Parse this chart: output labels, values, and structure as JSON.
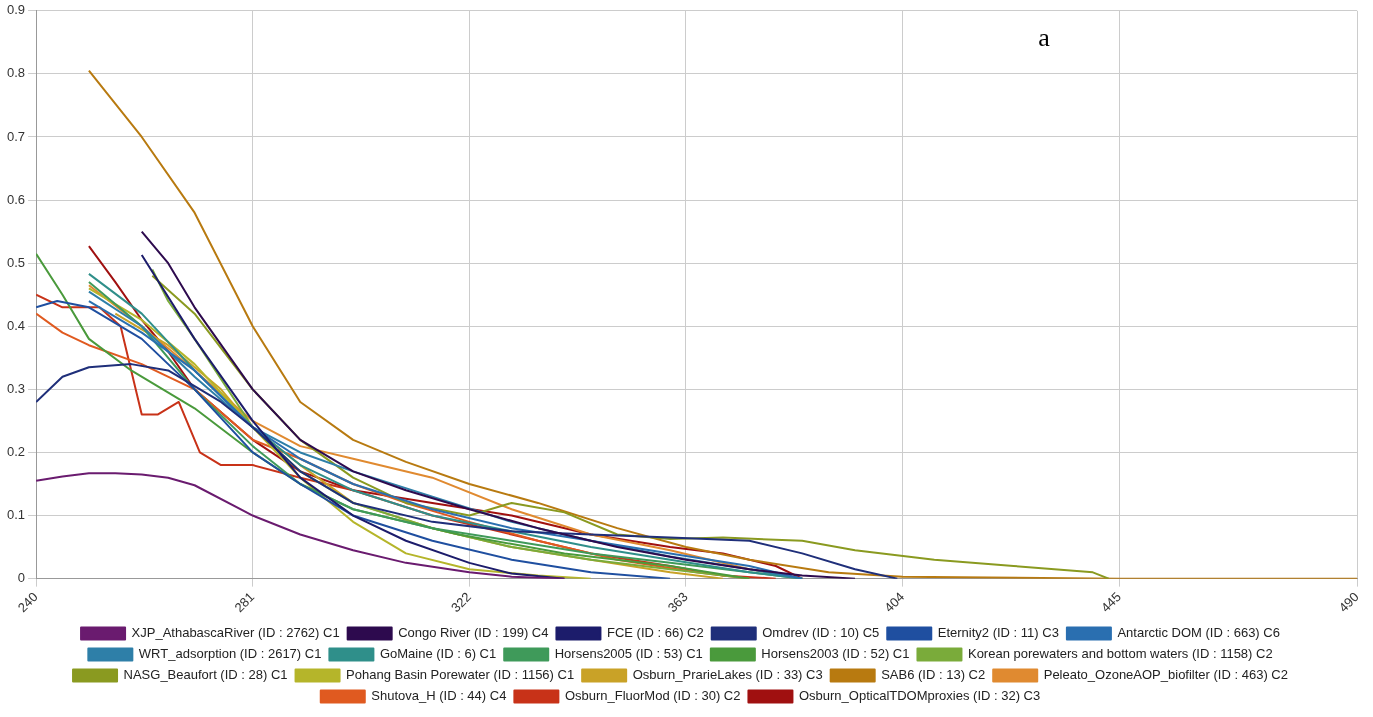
{
  "chart_data": {
    "type": "line",
    "annotations": [
      "a"
    ],
    "xlim": [
      240,
      490
    ],
    "xticks": [
      240,
      281,
      322,
      363,
      404,
      445,
      490
    ],
    "ylim": [
      0,
      0.9
    ],
    "yticks": [
      0,
      0.1,
      0.2,
      0.3,
      0.4,
      0.5,
      0.6,
      0.7,
      0.8,
      0.9
    ],
    "grid": true,
    "legend": "bottom",
    "marker": "none",
    "line_style": "solid",
    "series": [
      {
        "name": "XJP_AthabascaRiver (ID : 2762) C1",
        "color": "#6a1b6f",
        "x": [
          240,
          245,
          250,
          255,
          260,
          265,
          270,
          281,
          290,
          300,
          310,
          322,
          330,
          340
        ],
        "values": [
          0.155,
          0.162,
          0.167,
          0.167,
          0.165,
          0.16,
          0.148,
          0.1,
          0.07,
          0.045,
          0.025,
          0.01,
          0.003,
          0
        ]
      },
      {
        "name": "Congo River (ID : 199) C4",
        "color": "#2d0a4e",
        "x": [
          260,
          265,
          270,
          281,
          290,
          300,
          310,
          322,
          335,
          350,
          363,
          375,
          385,
          395
        ],
        "values": [
          0.55,
          0.5,
          0.43,
          0.3,
          0.22,
          0.17,
          0.14,
          0.11,
          0.08,
          0.05,
          0.03,
          0.015,
          0.005,
          0
        ]
      },
      {
        "name": "FCE (ID : 66) C2",
        "color": "#1c1c6b",
        "x": [
          260,
          270,
          281,
          290,
          300,
          310,
          322,
          330,
          340
        ],
        "values": [
          0.513,
          0.38,
          0.25,
          0.16,
          0.1,
          0.06,
          0.025,
          0.008,
          0
        ]
      },
      {
        "name": "Omdrev (ID : 10) C5",
        "color": "#1f2f7a",
        "x": [
          240,
          245,
          250,
          258,
          265,
          275,
          281,
          290,
          300,
          315,
          330,
          345,
          360,
          375,
          385,
          395,
          403
        ],
        "values": [
          0.28,
          0.32,
          0.335,
          0.34,
          0.33,
          0.28,
          0.24,
          0.17,
          0.12,
          0.09,
          0.075,
          0.07,
          0.065,
          0.06,
          0.04,
          0.015,
          0
        ]
      },
      {
        "name": "Eternity2 (ID : 11) C3",
        "color": "#1f4fa0",
        "x": [
          240,
          244,
          250,
          260,
          270,
          281,
          290,
          300,
          315,
          330,
          345,
          360
        ],
        "values": [
          0.43,
          0.44,
          0.43,
          0.38,
          0.3,
          0.2,
          0.15,
          0.1,
          0.06,
          0.03,
          0.01,
          0
        ]
      },
      {
        "name": "Antarctic DOM (ID : 663) C6",
        "color": "#2a6fb0",
        "x": [
          250,
          260,
          270,
          281,
          290,
          300,
          315,
          330,
          345,
          360,
          375,
          385
        ],
        "values": [
          0.44,
          0.39,
          0.33,
          0.24,
          0.19,
          0.15,
          0.11,
          0.08,
          0.06,
          0.04,
          0.02,
          0
        ]
      },
      {
        "name": "WRT_adsorption (ID : 2617) C1",
        "color": "#2e7fa8",
        "x": [
          250,
          260,
          270,
          281,
          290,
          300,
          315,
          330,
          345,
          360,
          375,
          385
        ],
        "values": [
          0.455,
          0.4,
          0.32,
          0.24,
          0.2,
          0.17,
          0.13,
          0.09,
          0.06,
          0.035,
          0.015,
          0
        ]
      },
      {
        "name": "GoMaine (ID : 6) C1",
        "color": "#2f8f8a",
        "x": [
          250,
          260,
          270,
          281,
          290,
          300,
          315,
          330,
          345,
          360,
          375,
          385
        ],
        "values": [
          0.483,
          0.42,
          0.33,
          0.24,
          0.18,
          0.14,
          0.1,
          0.075,
          0.05,
          0.03,
          0.01,
          0
        ]
      },
      {
        "name": "Horsens2005 (ID : 53) C1",
        "color": "#3f9a5a",
        "x": [
          250,
          260,
          270,
          281,
          290,
          300,
          315,
          330,
          345,
          360,
          375,
          385
        ],
        "values": [
          0.47,
          0.4,
          0.3,
          0.21,
          0.15,
          0.11,
          0.08,
          0.06,
          0.04,
          0.025,
          0.01,
          0
        ]
      },
      {
        "name": "Horsens2003 (ID : 52) C1",
        "color": "#4a9a3c",
        "x": [
          240,
          245,
          250,
          258,
          270,
          281,
          290,
          300,
          320,
          340,
          360,
          375
        ],
        "values": [
          0.515,
          0.45,
          0.38,
          0.33,
          0.27,
          0.2,
          0.15,
          0.11,
          0.07,
          0.04,
          0.02,
          0
        ]
      },
      {
        "name": "Korean porewaters and bottom waters (ID : 1158) C2",
        "color": "#7aab3a",
        "x": [
          262,
          265,
          270,
          281,
          290,
          300,
          315,
          330,
          345,
          360,
          375
        ],
        "values": [
          0.49,
          0.44,
          0.38,
          0.24,
          0.17,
          0.12,
          0.08,
          0.05,
          0.03,
          0.015,
          0
        ]
      },
      {
        "name": "NASG_Beaufort (ID : 28) C1",
        "color": "#8a9a20",
        "x": [
          262,
          270,
          281,
          290,
          300,
          310,
          322,
          330,
          340,
          350,
          360,
          370,
          385,
          395,
          410,
          425,
          440,
          443
        ],
        "values": [
          0.48,
          0.42,
          0.3,
          0.22,
          0.16,
          0.12,
          0.1,
          0.12,
          0.105,
          0.07,
          0.063,
          0.065,
          0.06,
          0.045,
          0.03,
          0.02,
          0.01,
          0
        ]
      },
      {
        "name": "Pohang Basin Porewater (ID : 1156) C1",
        "color": "#b5b52a",
        "x": [
          250,
          260,
          270,
          281,
          290,
          300,
          310,
          322,
          335,
          345
        ],
        "values": [
          0.46,
          0.41,
          0.34,
          0.24,
          0.16,
          0.09,
          0.04,
          0.015,
          0.005,
          0
        ]
      },
      {
        "name": "Osburn_PrarieLakes (ID : 33) C3",
        "color": "#c9a227",
        "x": [
          255,
          265,
          275,
          281,
          290,
          300,
          315,
          330,
          345,
          360,
          370
        ],
        "values": [
          0.42,
          0.37,
          0.3,
          0.24,
          0.18,
          0.12,
          0.08,
          0.05,
          0.03,
          0.01,
          0
        ]
      },
      {
        "name": "SAB6 (ID : 13) C2",
        "color": "#b87a10",
        "x": [
          250,
          260,
          270,
          281,
          290,
          300,
          310,
          322,
          335,
          350,
          363,
          375,
          390,
          404,
          445,
          490
        ],
        "values": [
          0.805,
          0.7,
          0.58,
          0.4,
          0.28,
          0.22,
          0.185,
          0.15,
          0.12,
          0.08,
          0.05,
          0.03,
          0.01,
          0.003,
          0,
          0
        ]
      },
      {
        "name": "Peleato_OzoneAOP_biofilter (ID : 463) C2",
        "color": "#e08a30",
        "x": [
          250,
          260,
          270,
          281,
          290,
          300,
          315,
          330,
          345,
          360,
          375,
          385
        ],
        "values": [
          0.465,
          0.4,
          0.33,
          0.25,
          0.21,
          0.19,
          0.16,
          0.11,
          0.07,
          0.045,
          0.015,
          0
        ]
      },
      {
        "name": "Shutova_H (ID : 44) C4",
        "color": "#e05a20",
        "x": [
          240,
          245,
          250,
          260,
          270,
          281,
          290,
          300,
          310,
          322,
          335,
          350,
          365,
          375
        ],
        "values": [
          0.42,
          0.39,
          0.37,
          0.34,
          0.3,
          0.22,
          0.19,
          0.15,
          0.12,
          0.09,
          0.06,
          0.03,
          0.01,
          0
        ]
      },
      {
        "name": "Osburn_FluorMod (ID : 30) C2",
        "color": "#c83218",
        "x": [
          240,
          245,
          252,
          256,
          260,
          263,
          267,
          271,
          275,
          281,
          290,
          300,
          315,
          330,
          345,
          360,
          370,
          380
        ],
        "values": [
          0.45,
          0.43,
          0.43,
          0.4,
          0.26,
          0.26,
          0.28,
          0.2,
          0.18,
          0.18,
          0.16,
          0.14,
          0.1,
          0.07,
          0.04,
          0.02,
          0.005,
          0
        ]
      },
      {
        "name": "Osburn_OpticalTDOMproxies (ID : 32) C3",
        "color": "#a01010",
        "x": [
          250,
          255,
          260,
          265,
          270,
          281,
          290,
          300,
          315,
          330,
          345,
          360,
          370,
          380,
          385
        ],
        "values": [
          0.527,
          0.47,
          0.41,
          0.36,
          0.3,
          0.22,
          0.17,
          0.14,
          0.12,
          0.1,
          0.07,
          0.05,
          0.04,
          0.02,
          0
        ]
      }
    ]
  }
}
